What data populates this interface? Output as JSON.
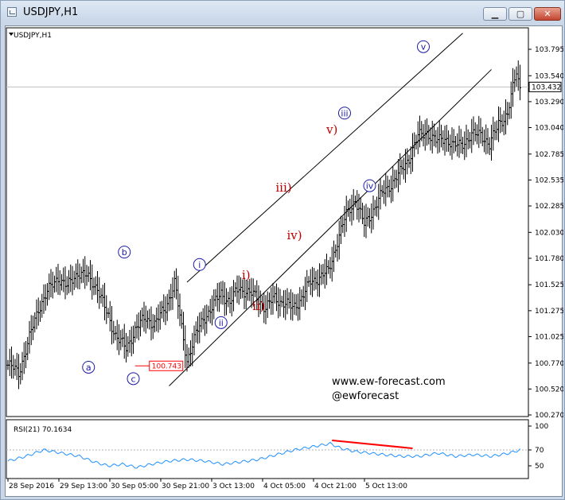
{
  "window": {
    "title": "USDJPY,H1",
    "controls": {
      "minimize": "▁",
      "maximize": "▢",
      "close": "✕"
    }
  },
  "chart_data": [
    {
      "type": "candlestick",
      "symbol_label": "USDJPY,H1",
      "y_ticks": [
        "103.795",
        "103.540",
        "103.290",
        "103.040",
        "102.785",
        "102.535",
        "102.285",
        "102.030",
        "101.780",
        "101.525",
        "101.275",
        "101.025",
        "100.770",
        "100.520",
        "100.270"
      ],
      "y_tick_values": [
        103.795,
        103.54,
        103.29,
        103.04,
        102.785,
        102.535,
        102.285,
        102.03,
        101.78,
        101.525,
        101.275,
        101.025,
        100.77,
        100.52,
        100.27
      ],
      "ylim": [
        100.27,
        103.795
      ],
      "current_price": "103.432",
      "current_price_value": 103.432,
      "x_ticks": [
        "28 Sep 2016",
        "29 Sep 13:00",
        "30 Sep 05:00",
        "30 Sep 21:00",
        "3 Oct 13:00",
        "4 Oct 05:00",
        "4 Oct 21:00",
        "5 Oct 13:00"
      ],
      "price_path": [
        [
          0,
          100.75
        ],
        [
          6,
          100.68
        ],
        [
          11,
          100.95
        ],
        [
          17,
          101.3
        ],
        [
          22,
          101.45
        ],
        [
          28,
          101.6
        ],
        [
          33,
          101.5
        ],
        [
          39,
          101.65
        ],
        [
          44,
          101.6
        ],
        [
          50,
          101.5
        ],
        [
          55,
          101.25
        ],
        [
          60,
          101.05
        ],
        [
          66,
          100.9
        ],
        [
          71,
          101.1
        ],
        [
          77,
          101.2
        ],
        [
          82,
          101.15
        ],
        [
          88,
          101.3
        ],
        [
          93,
          101.55
        ],
        [
          97,
          101.1
        ],
        [
          100,
          100.8
        ],
        [
          104,
          101.0
        ],
        [
          109,
          101.2
        ],
        [
          114,
          101.3
        ],
        [
          119,
          101.45
        ],
        [
          124,
          101.35
        ],
        [
          129,
          101.5
        ],
        [
          134,
          101.45
        ],
        [
          139,
          101.4
        ],
        [
          144,
          101.3
        ],
        [
          149,
          101.4
        ],
        [
          154,
          101.35
        ],
        [
          159,
          101.3
        ],
        [
          164,
          101.4
        ],
        [
          169,
          101.55
        ],
        [
          174,
          101.6
        ],
        [
          179,
          101.65
        ],
        [
          184,
          101.95
        ],
        [
          189,
          102.2
        ],
        [
          194,
          102.35
        ],
        [
          199,
          102.1
        ],
        [
          204,
          102.25
        ],
        [
          209,
          102.4
        ],
        [
          214,
          102.5
        ],
        [
          219,
          102.6
        ],
        [
          224,
          102.75
        ],
        [
          229,
          102.95
        ],
        [
          234,
          103.0
        ],
        [
          239,
          102.9
        ],
        [
          244,
          102.95
        ],
        [
          249,
          102.85
        ],
        [
          254,
          102.9
        ],
        [
          259,
          102.95
        ],
        [
          264,
          103.0
        ],
        [
          269,
          102.85
        ],
        [
          274,
          103.1
        ],
        [
          279,
          103.15
        ],
        [
          284,
          103.6
        ],
        [
          286,
          103.43
        ]
      ],
      "price_path_last_index": 286,
      "channel": {
        "upper": [
          [
            100,
            101.55
          ],
          [
            254,
            103.95
          ]
        ],
        "lower": [
          [
            90,
            100.55
          ],
          [
            270,
            103.6
          ]
        ]
      },
      "wave_labels_blue": [
        {
          "text": "a",
          "x": 45,
          "price": 100.73
        },
        {
          "text": "b",
          "x": 65,
          "price": 101.84
        },
        {
          "text": "c",
          "x": 70,
          "price": 100.62
        },
        {
          "text": "i",
          "x": 107,
          "price": 101.72
        },
        {
          "text": "ii",
          "x": 119,
          "price": 101.16
        },
        {
          "text": "iii",
          "x": 188,
          "price": 103.18
        },
        {
          "text": "iv",
          "x": 202,
          "price": 102.48
        },
        {
          "text": "v",
          "x": 232,
          "price": 103.82
        }
      ],
      "wave_labels_red": [
        {
          "text": "i)",
          "x": 133,
          "price": 101.62
        },
        {
          "text": "ii)",
          "x": 140,
          "price": 101.32
        },
        {
          "text": "iii)",
          "x": 154,
          "price": 102.46
        },
        {
          "text": "iv)",
          "x": 160,
          "price": 102.0
        },
        {
          "text": "v)",
          "x": 181,
          "price": 103.02
        }
      ],
      "level_marker": {
        "text": "100.743",
        "value": 100.743
      }
    },
    {
      "type": "line",
      "name": "RSI(21)",
      "header": "RSI(21) 70.1634",
      "y_ticks": [
        "100",
        "70",
        "50"
      ],
      "ylim": [
        40,
        100
      ],
      "reference_level": 70,
      "values": [
        [
          0,
          56
        ],
        [
          10,
          62
        ],
        [
          20,
          70
        ],
        [
          30,
          66
        ],
        [
          40,
          62
        ],
        [
          48,
          55
        ],
        [
          56,
          50
        ],
        [
          64,
          52
        ],
        [
          72,
          48
        ],
        [
          80,
          52
        ],
        [
          90,
          56
        ],
        [
          100,
          58
        ],
        [
          110,
          56
        ],
        [
          120,
          52
        ],
        [
          130,
          55
        ],
        [
          140,
          58
        ],
        [
          150,
          64
        ],
        [
          160,
          70
        ],
        [
          170,
          74
        ],
        [
          180,
          78
        ],
        [
          186,
          72
        ],
        [
          194,
          68
        ],
        [
          202,
          66
        ],
        [
          210,
          64
        ],
        [
          220,
          62
        ],
        [
          230,
          62
        ],
        [
          240,
          66
        ],
        [
          250,
          62
        ],
        [
          260,
          64
        ],
        [
          270,
          62
        ],
        [
          280,
          66
        ],
        [
          286,
          70
        ]
      ],
      "divergence_line": [
        [
          181,
          82
        ],
        [
          226,
          72
        ]
      ]
    }
  ],
  "watermark": {
    "site": "www.ew-forecast.com",
    "handle": "@ewforecast"
  },
  "colors": {
    "grid": "#cccccc",
    "price": "#000000",
    "rsi": "#1e90ff",
    "divergence": "#ff0000",
    "wave_blue": "#1a1aa6",
    "wave_red": "#c00000",
    "current_price_bg": "#ffffff",
    "level_marker": "#ff0000"
  }
}
